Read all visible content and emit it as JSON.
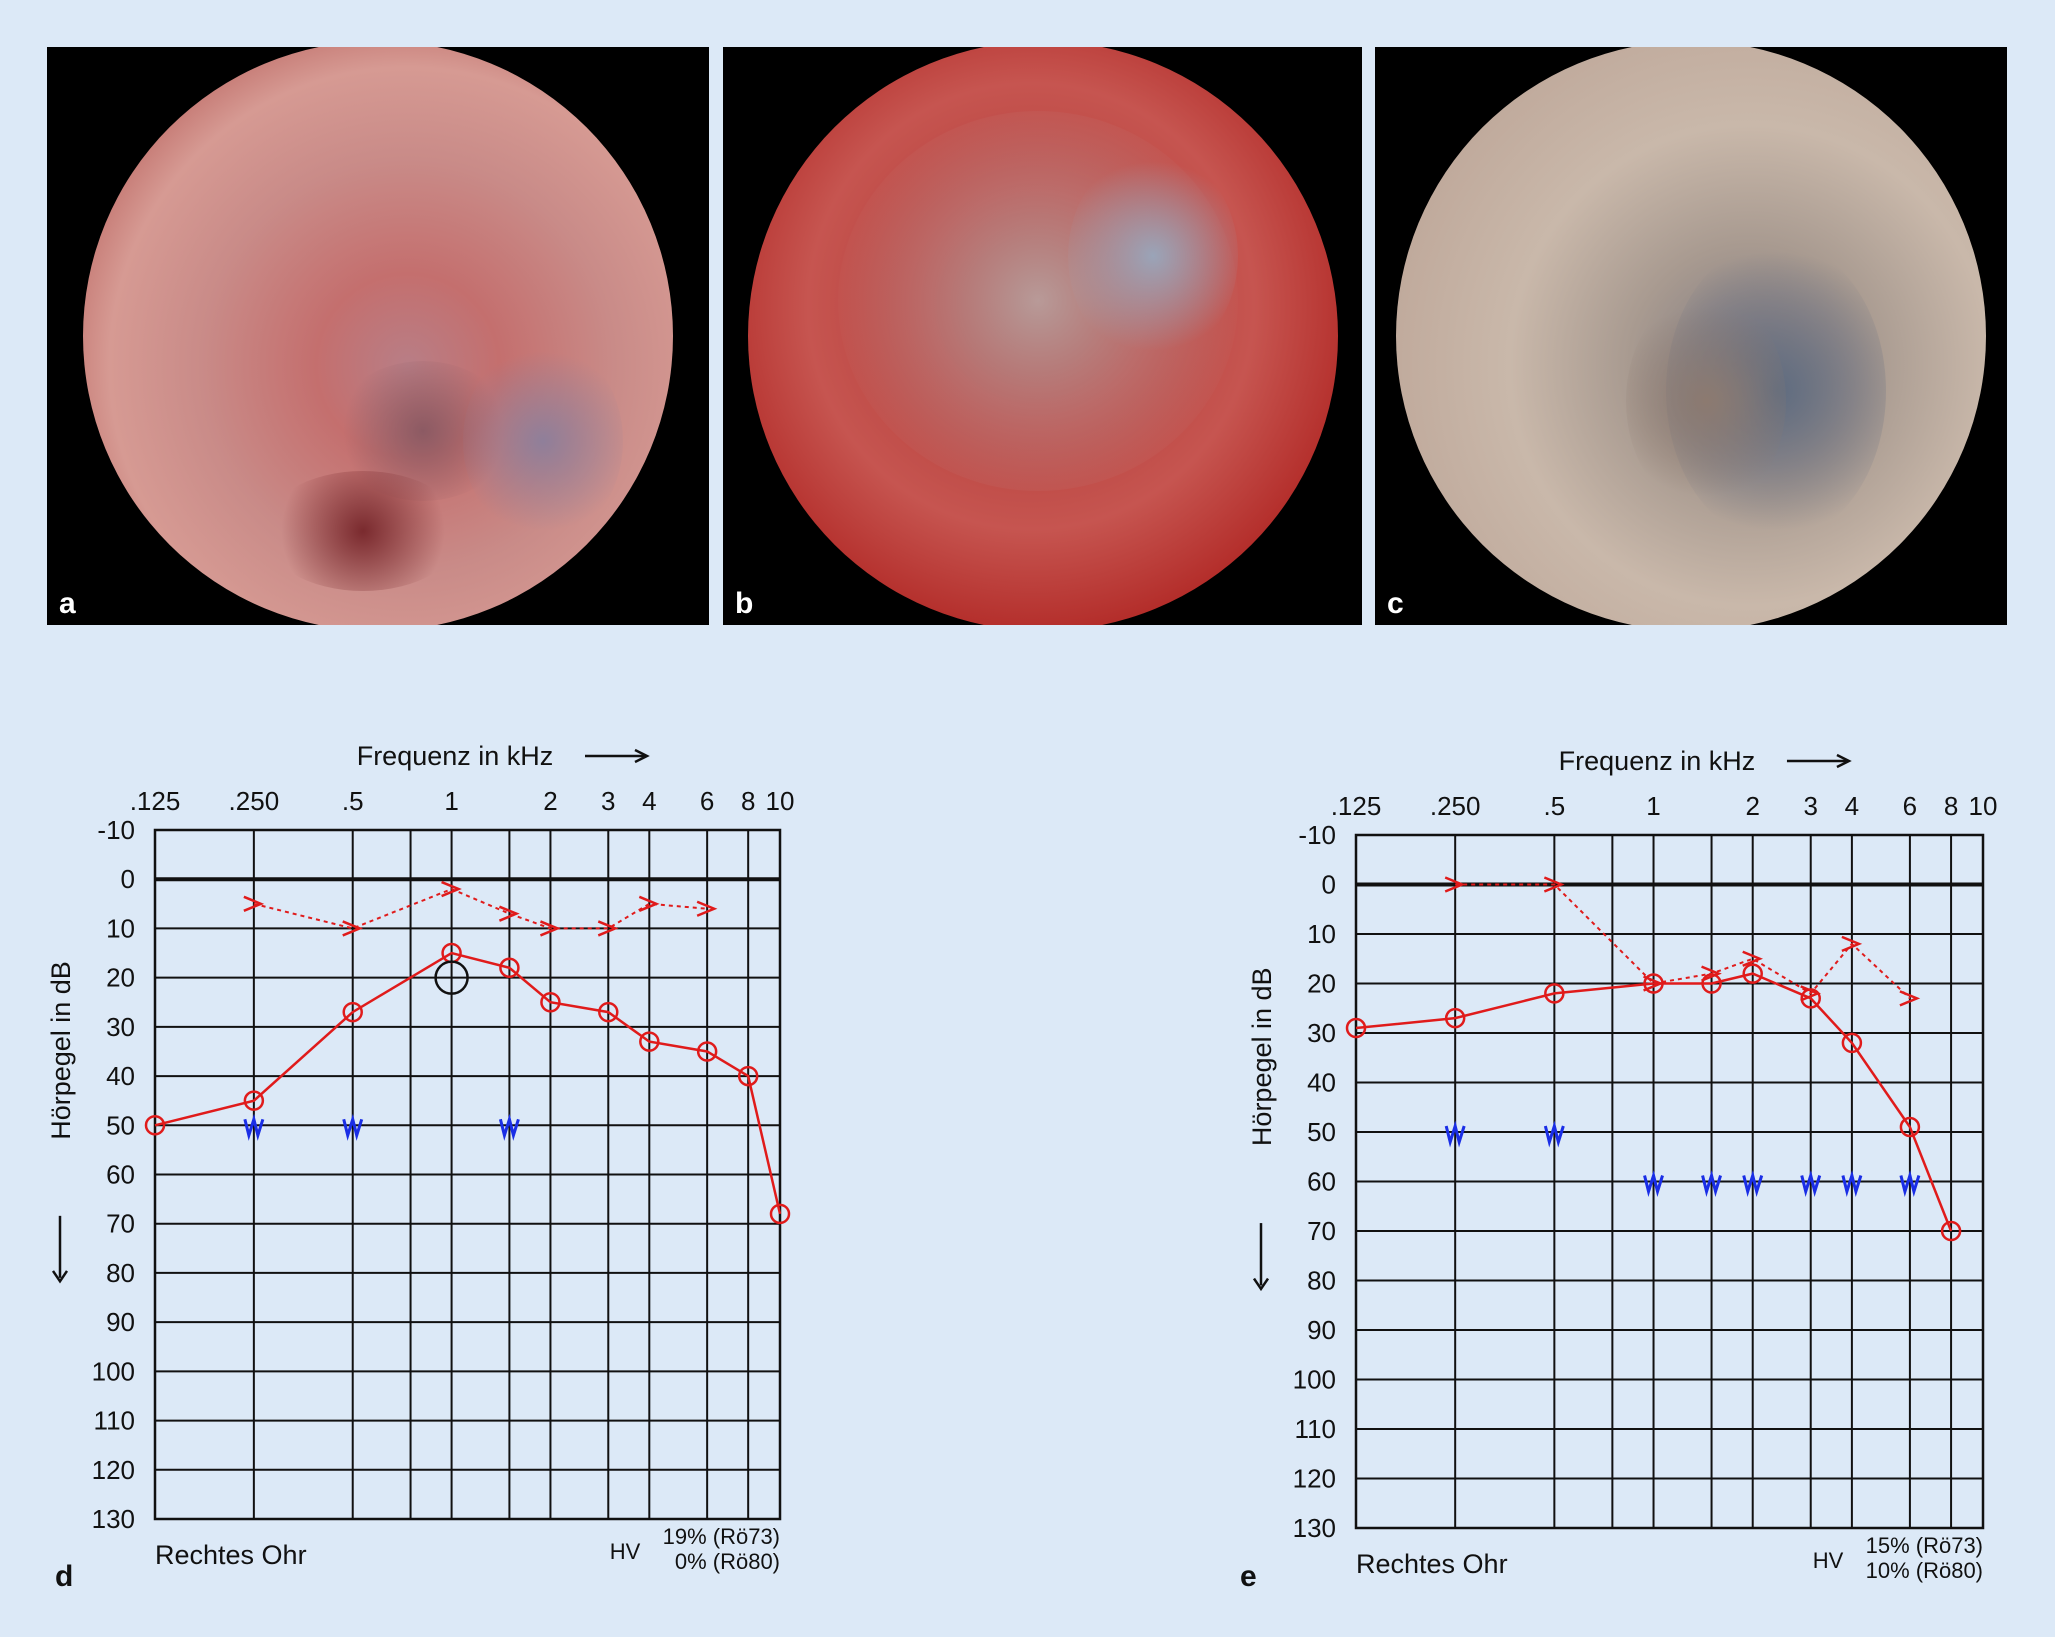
{
  "photos": [
    {
      "label": "a"
    },
    {
      "label": "b"
    },
    {
      "label": "c"
    }
  ],
  "colors": {
    "background": "#dce9f7",
    "air_conduction": "#e01b1b",
    "bone_conduction": "#e01b1b",
    "masked_bone": "#1a2ee6",
    "grid": "#111111"
  },
  "chart_data": [
    {
      "panel_label": "d",
      "type": "line",
      "title": "Frequenz in kHz",
      "xlabel": "Frequenz in kHz",
      "ylabel": "Hörpegel in dB",
      "x_ticks": [
        ".125",
        ".250",
        ".5",
        "1",
        "2",
        "3",
        "4",
        "6",
        "8",
        "10"
      ],
      "x_tick_values": [
        0.125,
        0.25,
        0.5,
        1,
        2,
        3,
        4,
        6,
        8,
        10
      ],
      "y_ticks": [
        "-10",
        "0",
        "10",
        "20",
        "30",
        "40",
        "50",
        "60",
        "70",
        "80",
        "90",
        "100",
        "110",
        "120",
        "130"
      ],
      "ylim": [
        -10,
        130
      ],
      "y_inverted": true,
      "footer_left": "Rechtes Ohr",
      "hv_label": "HV",
      "hv_values": [
        "19% (Rö73)",
        "0% (Rö80)"
      ],
      "series": [
        {
          "marker": "circle",
          "line": "solid",
          "color": "#e01b1b",
          "x": [
            0.125,
            0.25,
            0.5,
            1,
            1.5,
            2,
            3,
            4,
            6,
            8,
            10
          ],
          "y": [
            50,
            45,
            27,
            15,
            18,
            25,
            27,
            33,
            35,
            40,
            68
          ]
        },
        {
          "marker": "arrow",
          "line": "dotted",
          "color": "#e01b1b",
          "x": [
            0.25,
            0.5,
            1,
            1.5,
            2,
            3,
            4,
            6
          ],
          "y": [
            5,
            10,
            2,
            7,
            10,
            10,
            5,
            6
          ]
        },
        {
          "marker": "noise",
          "line": "none",
          "color": "#1a2ee6",
          "x": [
            0.25,
            0.5,
            1.5
          ],
          "y": [
            50,
            50,
            50
          ]
        },
        {
          "marker": "black-circle",
          "line": "none",
          "color": "#111111",
          "x": [
            1
          ],
          "y": [
            20
          ]
        }
      ]
    },
    {
      "panel_label": "e",
      "type": "line",
      "title": "Frequenz in kHz",
      "xlabel": "Frequenz in kHz",
      "ylabel": "Hörpegel in dB",
      "x_ticks": [
        ".125",
        ".250",
        ".5",
        "1",
        "2",
        "3",
        "4",
        "6",
        "8",
        "10"
      ],
      "x_tick_values": [
        0.125,
        0.25,
        0.5,
        1,
        2,
        3,
        4,
        6,
        8,
        10
      ],
      "y_ticks": [
        "-10",
        "0",
        "10",
        "20",
        "30",
        "40",
        "50",
        "60",
        "70",
        "80",
        "90",
        "100",
        "110",
        "120",
        "130"
      ],
      "ylim": [
        -10,
        130
      ],
      "y_inverted": true,
      "footer_left": "Rechtes Ohr",
      "hv_label": "HV",
      "hv_values": [
        "15% (Rö73)",
        "10% (Rö80)"
      ],
      "series": [
        {
          "marker": "circle",
          "line": "solid",
          "color": "#e01b1b",
          "x": [
            0.125,
            0.25,
            0.5,
            1,
            1.5,
            2,
            3,
            4,
            6,
            8
          ],
          "y": [
            29,
            27,
            22,
            20,
            20,
            18,
            23,
            32,
            49,
            70
          ]
        },
        {
          "marker": "arrow",
          "line": "dotted",
          "color": "#e01b1b",
          "x": [
            0.25,
            0.5,
            1,
            1.5,
            2,
            3,
            4,
            6
          ],
          "y": [
            0,
            0,
            20,
            18,
            15,
            22,
            12,
            23
          ]
        },
        {
          "marker": "noise",
          "line": "none",
          "color": "#1a2ee6",
          "x": [
            0.25,
            0.5,
            1,
            1.5,
            2,
            3,
            4,
            6
          ],
          "y": [
            50,
            50,
            60,
            60,
            60,
            60,
            60,
            60
          ]
        }
      ]
    }
  ]
}
